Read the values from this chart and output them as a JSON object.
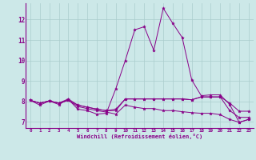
{
  "xlabel": "Windchill (Refroidissement éolien,°C)",
  "background_color": "#cce8e8",
  "line_color": "#880088",
  "grid_color": "#aacccc",
  "xlim": [
    -0.5,
    23.5
  ],
  "ylim": [
    6.7,
    12.8
  ],
  "xticks": [
    0,
    1,
    2,
    3,
    4,
    5,
    6,
    7,
    8,
    9,
    10,
    11,
    12,
    13,
    14,
    15,
    16,
    17,
    18,
    19,
    20,
    21,
    22,
    23
  ],
  "yticks": [
    7,
    8,
    9,
    10,
    11,
    12
  ],
  "series": [
    {
      "x": [
        0,
        1,
        2,
        3,
        4,
        5,
        6,
        7,
        8,
        9,
        10,
        11,
        12,
        13,
        14,
        15,
        16,
        17,
        18,
        19,
        20,
        21,
        22,
        23
      ],
      "y": [
        8.05,
        7.82,
        8.02,
        7.85,
        8.1,
        7.62,
        7.55,
        7.38,
        7.42,
        8.62,
        10.0,
        11.5,
        11.65,
        10.5,
        12.55,
        11.82,
        11.12,
        9.05,
        8.28,
        8.32,
        8.32,
        7.85,
        6.98,
        7.12
      ]
    },
    {
      "x": [
        0,
        1,
        2,
        3,
        4,
        5,
        6,
        7,
        8,
        9,
        10,
        11,
        12,
        13,
        14,
        15,
        16,
        17,
        18,
        19,
        20,
        21,
        22,
        23
      ],
      "y": [
        8.05,
        7.92,
        8.02,
        7.92,
        8.05,
        7.82,
        7.72,
        7.62,
        7.55,
        7.62,
        8.12,
        8.12,
        8.12,
        8.12,
        8.12,
        8.12,
        8.12,
        8.08,
        8.22,
        8.22,
        8.22,
        7.55,
        7.22,
        7.22
      ]
    },
    {
      "x": [
        0,
        1,
        2,
        3,
        4,
        5,
        6,
        7,
        8,
        9,
        10,
        11,
        12,
        13,
        14,
        15,
        16,
        17,
        18,
        19,
        20,
        21,
        22,
        23
      ],
      "y": [
        8.05,
        7.92,
        8.02,
        7.92,
        8.05,
        7.75,
        7.65,
        7.55,
        7.48,
        7.38,
        7.82,
        7.72,
        7.65,
        7.65,
        7.55,
        7.55,
        7.5,
        7.45,
        7.42,
        7.42,
        7.35,
        7.12,
        6.98,
        7.12
      ]
    },
    {
      "x": [
        0,
        1,
        2,
        3,
        4,
        5,
        6,
        7,
        8,
        9,
        10,
        11,
        12,
        13,
        14,
        15,
        16,
        17,
        18,
        19,
        20,
        21,
        22,
        23
      ],
      "y": [
        8.05,
        7.92,
        8.02,
        7.92,
        8.12,
        7.82,
        7.72,
        7.62,
        7.55,
        7.55,
        8.12,
        8.12,
        8.12,
        8.12,
        8.12,
        8.12,
        8.12,
        8.08,
        8.22,
        8.22,
        8.22,
        7.92,
        7.52,
        7.52
      ]
    }
  ]
}
